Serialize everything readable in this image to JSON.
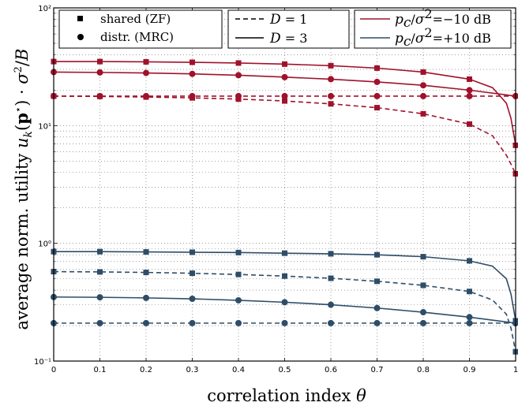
{
  "chart_data": {
    "type": "line",
    "xlabel": "correlation index θ",
    "ylabel": "average norm. utility u_k(p*) · σ²/B",
    "xlim": [
      0,
      1
    ],
    "ylim": [
      0.1,
      100
    ],
    "yscale": "log",
    "x_ticks": [
      "0",
      "0.1",
      "0.2",
      "0.3",
      "0.4",
      "0.5",
      "0.6",
      "0.7",
      "0.8",
      "0.9",
      "1"
    ],
    "y_ticks": [
      "10⁻¹",
      "10⁰",
      "10¹",
      "10²"
    ],
    "grid": true,
    "legends": [
      {
        "position": "top-left",
        "entries": [
          "shared (ZF)",
          "distr. (MRC)"
        ]
      },
      {
        "position": "top-center",
        "entries": [
          "D = 1",
          "D = 3"
        ]
      },
      {
        "position": "top-right",
        "entries": [
          "pc/σ²=−10 dB",
          "pc/σ²=+10 dB"
        ]
      }
    ],
    "colors": {
      "minus10": "#a0122b",
      "plus10": "#2e4d68"
    },
    "marker_x": [
      0,
      0.1,
      0.2,
      0.3,
      0.4,
      0.5,
      0.6,
      0.7,
      0.8,
      0.9,
      1.0
    ],
    "series": [
      {
        "snr": "-10 dB",
        "scheme": "shared (ZF)",
        "D": 3,
        "marker": "square",
        "color": "#a0122b",
        "x": [
          0,
          0.1,
          0.2,
          0.3,
          0.4,
          0.5,
          0.6,
          0.7,
          0.8,
          0.9,
          0.95,
          0.98,
          0.99,
          1.0
        ],
        "y": [
          35,
          35,
          34.8,
          34.5,
          34,
          33.3,
          32.3,
          30.8,
          28.5,
          24.8,
          21,
          15.5,
          11.5,
          6.8
        ]
      },
      {
        "snr": "-10 dB",
        "scheme": "distr. (MRC)",
        "D": 3,
        "marker": "circle",
        "color": "#a0122b",
        "x": [
          0,
          0.1,
          0.2,
          0.3,
          0.4,
          0.5,
          0.6,
          0.7,
          0.8,
          0.9,
          1.0
        ],
        "y": [
          28.5,
          28.3,
          28,
          27.5,
          26.8,
          25.8,
          24.8,
          23.5,
          22,
          20,
          17.8
        ]
      },
      {
        "snr": "-10 dB",
        "scheme": "shared (ZF)",
        "D": 1,
        "marker": "square",
        "color": "#a0122b",
        "x": [
          0,
          0.1,
          0.2,
          0.3,
          0.4,
          0.5,
          0.6,
          0.7,
          0.8,
          0.9,
          0.95,
          0.98,
          0.99,
          1.0
        ],
        "y": [
          17.8,
          17.7,
          17.5,
          17.2,
          16.8,
          16.2,
          15.3,
          14.2,
          12.6,
          10.3,
          8.2,
          5.6,
          4.7,
          3.9
        ]
      },
      {
        "snr": "-10 dB",
        "scheme": "distr. (MRC)",
        "D": 1,
        "marker": "circle",
        "color": "#a0122b",
        "x": [
          0,
          0.1,
          0.2,
          0.3,
          0.4,
          0.5,
          0.6,
          0.7,
          0.8,
          0.9,
          1.0
        ],
        "y": [
          17.8,
          17.8,
          17.8,
          17.8,
          17.8,
          17.8,
          17.8,
          17.8,
          17.8,
          17.8,
          17.8
        ]
      },
      {
        "snr": "+10 dB",
        "scheme": "shared (ZF)",
        "D": 3,
        "marker": "square",
        "color": "#2e4d68",
        "x": [
          0,
          0.1,
          0.2,
          0.3,
          0.4,
          0.5,
          0.6,
          0.7,
          0.8,
          0.9,
          0.95,
          0.98,
          0.99,
          1.0
        ],
        "y": [
          0.85,
          0.85,
          0.845,
          0.84,
          0.835,
          0.825,
          0.815,
          0.8,
          0.77,
          0.71,
          0.64,
          0.5,
          0.37,
          0.22
        ]
      },
      {
        "snr": "+10 dB",
        "scheme": "shared (ZF)",
        "D": 1,
        "marker": "square",
        "color": "#2e4d68",
        "x": [
          0,
          0.1,
          0.2,
          0.3,
          0.4,
          0.5,
          0.6,
          0.7,
          0.8,
          0.9,
          0.95,
          0.98,
          0.99,
          1.0
        ],
        "y": [
          0.575,
          0.572,
          0.566,
          0.557,
          0.544,
          0.527,
          0.505,
          0.476,
          0.44,
          0.39,
          0.33,
          0.25,
          0.19,
          0.12
        ]
      },
      {
        "snr": "+10 dB",
        "scheme": "distr. (MRC)",
        "D": 3,
        "marker": "circle",
        "color": "#2e4d68",
        "x": [
          0,
          0.1,
          0.2,
          0.3,
          0.4,
          0.5,
          0.6,
          0.7,
          0.8,
          0.9,
          1.0
        ],
        "y": [
          0.35,
          0.348,
          0.344,
          0.338,
          0.328,
          0.316,
          0.301,
          0.282,
          0.26,
          0.236,
          0.21
        ]
      },
      {
        "snr": "+10 dB",
        "scheme": "distr. (MRC)",
        "D": 1,
        "marker": "circle",
        "color": "#2e4d68",
        "x": [
          0,
          0.1,
          0.2,
          0.3,
          0.4,
          0.5,
          0.6,
          0.7,
          0.8,
          0.9,
          1.0
        ],
        "y": [
          0.21,
          0.21,
          0.21,
          0.21,
          0.21,
          0.21,
          0.21,
          0.21,
          0.21,
          0.21,
          0.21
        ]
      }
    ]
  }
}
